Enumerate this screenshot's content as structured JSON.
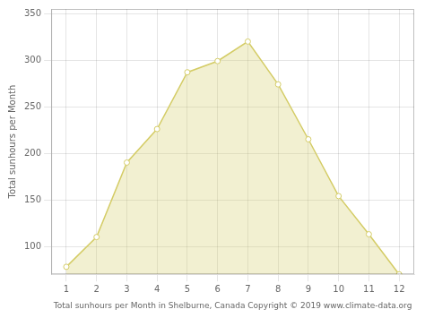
{
  "chart_data": {
    "type": "area",
    "xlabel": "Total sunhours per Month in Shelburne, Canada Copyright © 2019 www.climate-data.org",
    "ylabel": "Total sunhours per Month",
    "x": [
      1,
      2,
      3,
      4,
      5,
      6,
      7,
      8,
      9,
      10,
      11,
      12
    ],
    "values": [
      78,
      110,
      190,
      226,
      287,
      299,
      320,
      274,
      215,
      154,
      113,
      70
    ],
    "color": "#D4CC66",
    "marker": "circle",
    "xlim": [
      0.5,
      12.5
    ],
    "xticks": [
      1,
      2,
      3,
      4,
      5,
      6,
      7,
      8,
      9,
      10,
      11,
      12
    ],
    "ylim": [
      70,
      355
    ],
    "yticks": [
      100,
      150,
      200,
      250,
      300,
      350
    ],
    "grid": true
  }
}
